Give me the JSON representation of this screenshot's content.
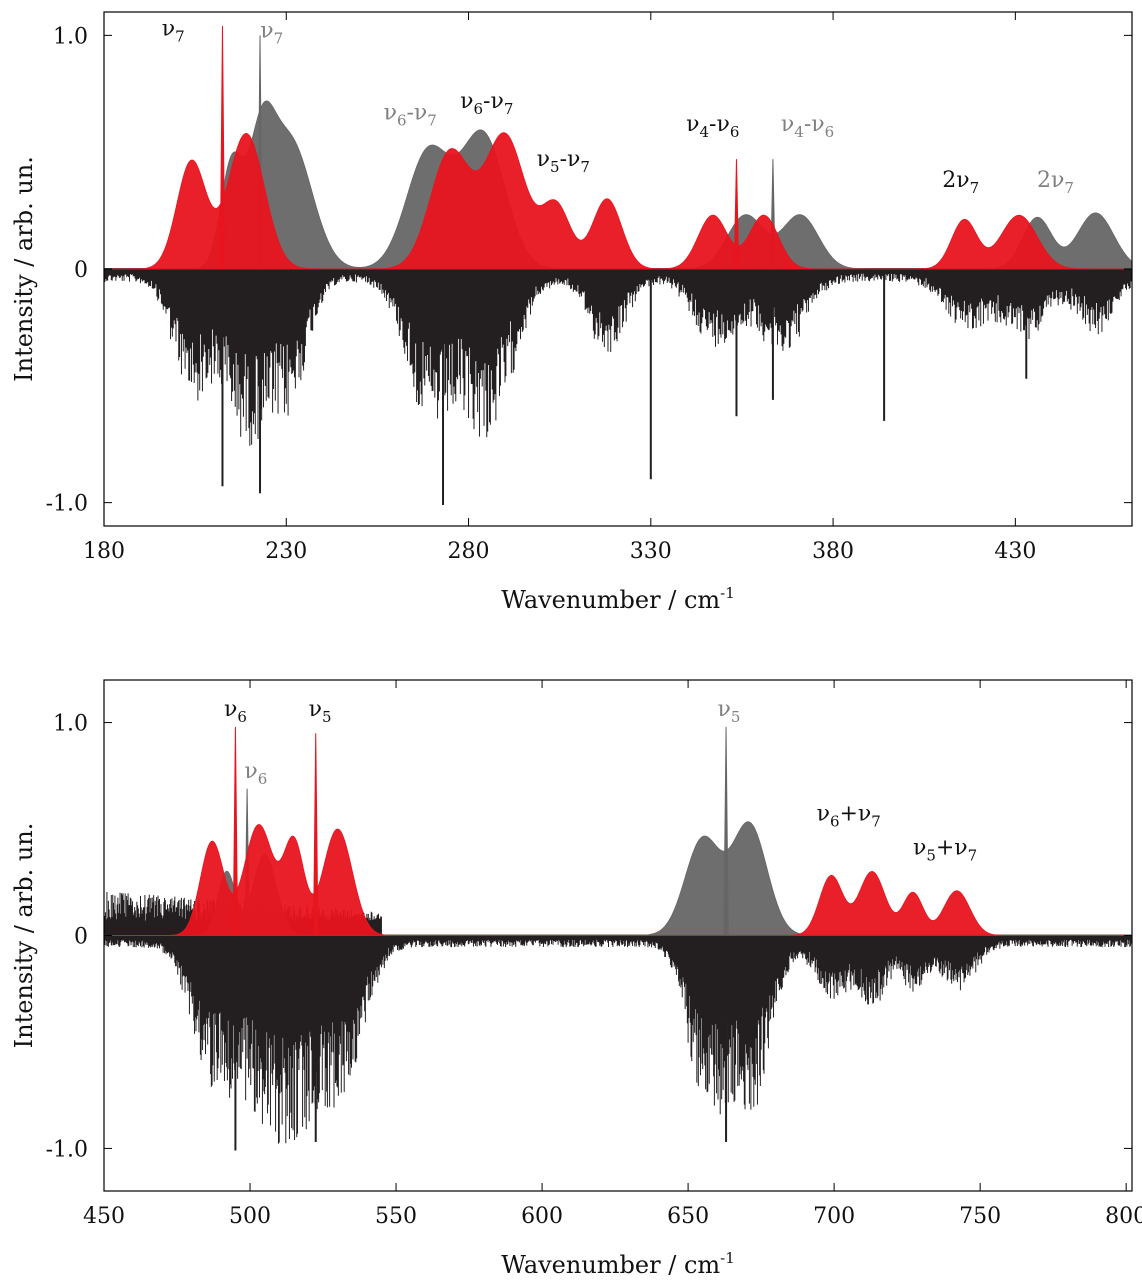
{
  "colors": {
    "calc_red": "#e8141e",
    "calc_grey": "#666666",
    "experiment": "#231f20",
    "label_black": "#111111",
    "label_grey": "#808080"
  },
  "chart_data": [
    {
      "type": "line",
      "xlabel": "Wavenumber / cm-1",
      "xlabel_main": "Wavenumber / cm",
      "xlabel_sup": "-1",
      "ylabel": "Intensity / arb. un.",
      "xlim": [
        180,
        462
      ],
      "ylim": [
        -1.1,
        1.1
      ],
      "x_ticks": [
        180,
        230,
        280,
        330,
        380,
        430
      ],
      "x_tick_labels": [
        "180",
        "230",
        "280",
        "330",
        "380",
        "430"
      ],
      "y_ticks": [
        1.0,
        0,
        -1.0
      ],
      "y_tick_labels": [
        "1.0",
        "0",
        "-1.0"
      ],
      "series": [
        {
          "role": "calculated (grey)",
          "peaks": [
            {
              "center": 215,
              "height": 0.44,
              "width": 3
            },
            {
              "center": 223,
              "height": 0.45,
              "width": 3.5
            },
            {
              "center": 231,
              "height": 0.55,
              "width": 6
            },
            {
              "center": 269,
              "height": 0.5,
              "width": 6
            },
            {
              "center": 284,
              "height": 0.57,
              "width": 6
            },
            {
              "center": 356,
              "height": 0.23,
              "width": 5
            },
            {
              "center": 371,
              "height": 0.23,
              "width": 5
            },
            {
              "center": 436,
              "height": 0.22,
              "width": 4
            },
            {
              "center": 452,
              "height": 0.24,
              "width": 5
            }
          ],
          "spikes": [
            {
              "x": 222.8,
              "y": 1.0
            },
            {
              "x": 363.5,
              "y": 0.47
            }
          ]
        },
        {
          "role": "calculated (red)",
          "peaks": [
            {
              "center": 204,
              "height": 0.46,
              "width": 4
            },
            {
              "center": 219,
              "height": 0.58,
              "width": 5
            },
            {
              "center": 275,
              "height": 0.5,
              "width": 5.5
            },
            {
              "center": 290,
              "height": 0.57,
              "width": 5.5
            },
            {
              "center": 304,
              "height": 0.27,
              "width": 4
            },
            {
              "center": 318,
              "height": 0.3,
              "width": 4
            },
            {
              "center": 347,
              "height": 0.23,
              "width": 4
            },
            {
              "center": 361,
              "height": 0.23,
              "width": 4
            },
            {
              "center": 416,
              "height": 0.21,
              "width": 3.5
            },
            {
              "center": 431,
              "height": 0.23,
              "width": 5
            }
          ],
          "spikes": [
            {
              "x": 212.5,
              "y": 1.04
            },
            {
              "x": 353.5,
              "y": 0.47
            }
          ]
        },
        {
          "role": "experiment (inverted)",
          "envelope": [
            {
              "center": 204,
              "height": 0.5,
              "width": 5
            },
            {
              "center": 219,
              "height": 0.68,
              "width": 6
            },
            {
              "center": 231,
              "height": 0.5,
              "width": 5
            },
            {
              "center": 269,
              "height": 0.6,
              "width": 6
            },
            {
              "center": 285,
              "height": 0.68,
              "width": 7
            },
            {
              "center": 318,
              "height": 0.32,
              "width": 5
            },
            {
              "center": 348,
              "height": 0.3,
              "width": 6
            },
            {
              "center": 366,
              "height": 0.33,
              "width": 6
            },
            {
              "center": 417,
              "height": 0.22,
              "width": 6
            },
            {
              "center": 433,
              "height": 0.25,
              "width": 6
            },
            {
              "center": 452,
              "height": 0.24,
              "width": 5
            }
          ],
          "spikes": [
            {
              "x": 212.5,
              "y": -0.93
            },
            {
              "x": 222.8,
              "y": -0.96
            },
            {
              "x": 273,
              "y": -1.01
            },
            {
              "x": 330,
              "y": -0.9
            },
            {
              "x": 353.5,
              "y": -0.63
            },
            {
              "x": 363.5,
              "y": -0.56
            },
            {
              "x": 394,
              "y": -0.65
            },
            {
              "x": 433,
              "y": -0.47
            }
          ]
        }
      ],
      "annotations": [
        {
          "base": "ν",
          "sub": "7",
          "tail": "",
          "color": "black",
          "x": 199,
          "y": 1.0
        },
        {
          "base": "ν",
          "sub": "7",
          "tail": "",
          "color": "grey",
          "x": 226,
          "y": 0.99
        },
        {
          "base": "ν",
          "sub": "6",
          "tail": "-ν",
          "sub2": "7",
          "color": "grey",
          "x": 264,
          "y": 0.64
        },
        {
          "base": "ν",
          "sub": "6",
          "tail": "-ν",
          "sub2": "7",
          "color": "black",
          "x": 285,
          "y": 0.69
        },
        {
          "base": "ν",
          "sub": "5",
          "tail": "-ν",
          "sub2": "7",
          "color": "black",
          "x": 306,
          "y": 0.44
        },
        {
          "base": "ν",
          "sub": "4",
          "tail": "-ν",
          "sub2": "6",
          "color": "black",
          "x": 347,
          "y": 0.59
        },
        {
          "base": "ν",
          "sub": "4",
          "tail": "-ν",
          "sub2": "6",
          "color": "grey",
          "x": 373,
          "y": 0.59
        },
        {
          "base": "2ν",
          "sub": "7",
          "tail": "",
          "color": "black",
          "x": 415,
          "y": 0.35
        },
        {
          "base": "2ν",
          "sub": "7",
          "tail": "",
          "color": "grey",
          "x": 441,
          "y": 0.35
        }
      ]
    },
    {
      "type": "line",
      "xlabel": "Wavenumber / cm-1",
      "xlabel_main": "Wavenumber / cm",
      "xlabel_sup": "-1",
      "ylabel": "Intensity / arb. un.",
      "xlim": [
        450,
        802
      ],
      "ylim": [
        -1.2,
        1.2
      ],
      "x_ticks": [
        450,
        500,
        550,
        600,
        650,
        700,
        750,
        800
      ],
      "x_tick_labels": [
        "450",
        "500",
        "550",
        "600",
        "650",
        "700",
        "750",
        "800"
      ],
      "y_ticks": [
        1.0,
        0,
        -1.0
      ],
      "y_tick_labels": [
        "1.0",
        "0",
        "-1.0"
      ],
      "series": [
        {
          "role": "calculated (grey)",
          "peaks": [
            {
              "center": 492,
              "height": 0.3,
              "width": 3
            },
            {
              "center": 505,
              "height": 0.38,
              "width": 4
            },
            {
              "center": 655,
              "height": 0.45,
              "width": 6
            },
            {
              "center": 671,
              "height": 0.52,
              "width": 6
            }
          ],
          "spikes": [
            {
              "x": 499,
              "y": 0.69
            },
            {
              "x": 663,
              "y": 0.98
            }
          ]
        },
        {
          "role": "calculated (red)",
          "peaks": [
            {
              "center": 487,
              "height": 0.44,
              "width": 4
            },
            {
              "center": 503,
              "height": 0.52,
              "width": 5
            },
            {
              "center": 515,
              "height": 0.43,
              "width": 3.5
            },
            {
              "center": 530,
              "height": 0.5,
              "width": 5
            },
            {
              "center": 699,
              "height": 0.28,
              "width": 4
            },
            {
              "center": 713,
              "height": 0.3,
              "width": 4.5
            },
            {
              "center": 727,
              "height": 0.2,
              "width": 3.5
            },
            {
              "center": 742,
              "height": 0.21,
              "width": 4.5
            }
          ],
          "spikes": [
            {
              "x": 495,
              "y": 0.98
            },
            {
              "x": 522.5,
              "y": 0.95
            }
          ]
        },
        {
          "role": "experiment (inverted)",
          "envelope": [
            {
              "center": 487,
              "height": 0.6,
              "width": 7
            },
            {
              "center": 503,
              "height": 0.7,
              "width": 8
            },
            {
              "center": 515,
              "height": 0.62,
              "width": 6
            },
            {
              "center": 530,
              "height": 0.75,
              "width": 8
            },
            {
              "center": 656,
              "height": 0.75,
              "width": 6
            },
            {
              "center": 671,
              "height": 0.8,
              "width": 7
            },
            {
              "center": 699,
              "height": 0.28,
              "width": 5
            },
            {
              "center": 713,
              "height": 0.3,
              "width": 5
            },
            {
              "center": 727,
              "height": 0.2,
              "width": 4
            },
            {
              "center": 742,
              "height": 0.22,
              "width": 6
            }
          ],
          "spikes": [
            {
              "x": 495,
              "y": -1.01
            },
            {
              "x": 522.5,
              "y": -0.97
            },
            {
              "x": 663,
              "y": -0.97
            }
          ],
          "positive_noise_region": [
            450,
            545
          ]
        }
      ],
      "annotations": [
        {
          "base": "ν",
          "sub": "6",
          "tail": "",
          "color": "black",
          "x": 495,
          "y": 1.03
        },
        {
          "base": "ν",
          "sub": "5",
          "tail": "",
          "color": "black",
          "x": 524,
          "y": 1.03
        },
        {
          "base": "ν",
          "sub": "6",
          "tail": "",
          "color": "grey",
          "x": 502,
          "y": 0.74
        },
        {
          "base": "ν",
          "sub": "5",
          "tail": "",
          "color": "grey",
          "x": 664,
          "y": 1.03
        },
        {
          "base": "ν",
          "sub": "6",
          "tail": "+ν",
          "sub2": "7",
          "color": "black",
          "x": 705,
          "y": 0.54
        },
        {
          "base": "ν",
          "sub": "5",
          "tail": "+ν",
          "sub2": "7",
          "color": "black",
          "x": 738,
          "y": 0.38
        }
      ]
    }
  ]
}
